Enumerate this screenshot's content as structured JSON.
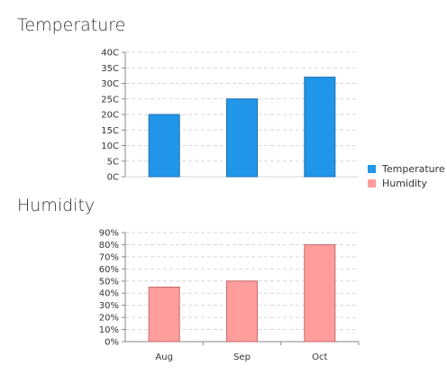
{
  "charts": {
    "temperature": {
      "title": "Temperature"
    },
    "humidity": {
      "title": "Humidity"
    }
  },
  "legend": [
    {
      "label": "Temperature",
      "color": "#2196e8"
    },
    {
      "label": "Humidity",
      "color": "#ff9c9c"
    }
  ],
  "chart_data": [
    {
      "type": "bar",
      "title": "Temperature",
      "categories": [
        "Aug",
        "Sep",
        "Oct"
      ],
      "series": [
        {
          "name": "Temperature",
          "values": [
            20,
            25,
            32
          ],
          "color": "#2196e8",
          "stroke": "#1b6fb3"
        }
      ],
      "ylim": [
        0,
        40
      ],
      "yticks": [
        "0C",
        "5C",
        "10C",
        "15C",
        "20C",
        "25C",
        "30C",
        "35C",
        "40C"
      ],
      "xtick_labels_visible": false,
      "grid": true
    },
    {
      "type": "bar",
      "title": "Humidity",
      "categories": [
        "Aug",
        "Sep",
        "Oct"
      ],
      "series": [
        {
          "name": "Humidity",
          "values": [
            45,
            50,
            80
          ],
          "color": "#ff9c9c",
          "stroke": "#c46b6b"
        }
      ],
      "ylim": [
        0,
        90
      ],
      "yticks": [
        "0%",
        "10%",
        "20%",
        "30%",
        "40%",
        "50%",
        "60%",
        "70%",
        "80%",
        "90%"
      ],
      "xtick_labels_visible": true,
      "grid": true
    }
  ]
}
